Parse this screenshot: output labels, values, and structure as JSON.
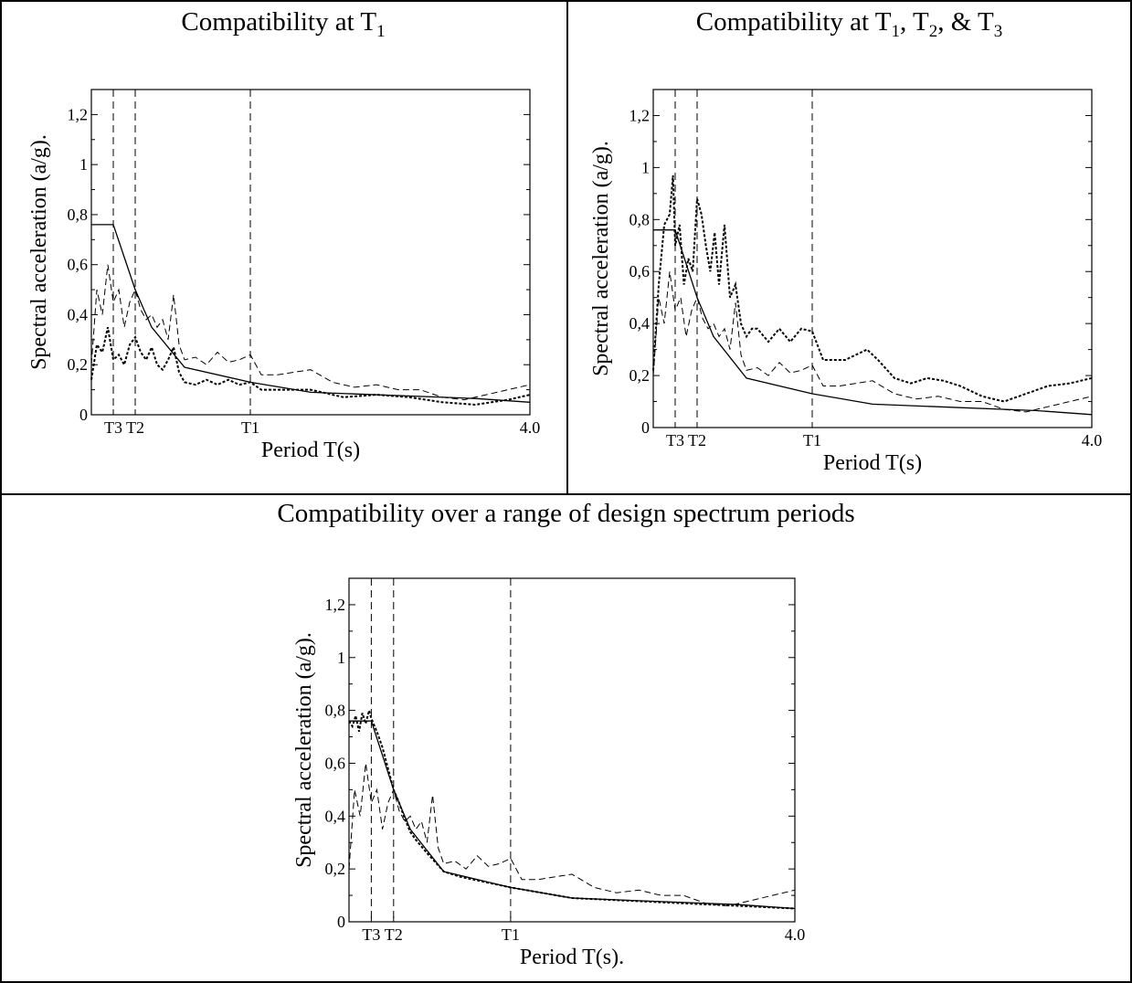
{
  "panels": [
    {
      "title_main": "Compatibility at T",
      "title_sub1": "1",
      "title_rest": "",
      "title_sub2": "",
      "title_rest2": "",
      "title_sub3": ""
    },
    {
      "title_main": "Compatibility at T",
      "title_sub1": "1",
      "title_rest": ", T",
      "title_sub2": "2",
      "title_rest2": ", & T",
      "title_sub3": "3"
    },
    {
      "title_main": "Compatibility over a range of design spectrum periods",
      "title_sub1": "",
      "title_rest": "",
      "title_sub2": "",
      "title_rest2": "",
      "title_sub3": ""
    }
  ],
  "chart_data": [
    {
      "type": "line",
      "ylabel": "Spectral acceleration (a/g).",
      "xlabel": "Period T(s)",
      "ylim": [
        0,
        1.3
      ],
      "xlim": [
        0,
        4.0
      ],
      "y_ticks": [
        "0",
        "0,2",
        "0,4",
        "0,6",
        "0,8",
        "1",
        "1,2"
      ],
      "x_tick_labels": [
        {
          "label": "T3",
          "x": 0.2
        },
        {
          "label": "T2",
          "x": 0.4
        },
        {
          "label": "T1",
          "x": 1.45
        },
        {
          "label": "4.0",
          "x": 4.0
        }
      ],
      "vlines": [
        0.2,
        0.4,
        1.45
      ],
      "grid": false,
      "series": [
        {
          "style": "solid",
          "x": [
            0,
            0.2,
            0.4,
            0.55,
            0.85,
            1.45,
            2.0,
            3.5,
            4.0
          ],
          "y": [
            0.76,
            0.76,
            0.5,
            0.35,
            0.19,
            0.13,
            0.09,
            0.065,
            0.05
          ]
        },
        {
          "style": "dashed",
          "x": [
            0,
            0.05,
            0.1,
            0.15,
            0.2,
            0.25,
            0.3,
            0.35,
            0.4,
            0.45,
            0.5,
            0.55,
            0.6,
            0.65,
            0.7,
            0.75,
            0.8,
            0.85,
            0.95,
            1.05,
            1.15,
            1.25,
            1.35,
            1.45,
            1.55,
            1.7,
            1.85,
            2.0,
            2.2,
            2.4,
            2.6,
            2.8,
            3.0,
            3.2,
            3.4,
            3.6,
            3.8,
            4.0
          ],
          "y": [
            0.2,
            0.5,
            0.4,
            0.6,
            0.45,
            0.5,
            0.35,
            0.45,
            0.5,
            0.42,
            0.38,
            0.4,
            0.35,
            0.38,
            0.3,
            0.48,
            0.28,
            0.22,
            0.23,
            0.2,
            0.25,
            0.21,
            0.22,
            0.24,
            0.16,
            0.16,
            0.17,
            0.18,
            0.13,
            0.11,
            0.12,
            0.1,
            0.1,
            0.07,
            0.06,
            0.08,
            0.1,
            0.12
          ]
        },
        {
          "style": "dotted",
          "x": [
            0,
            0.05,
            0.1,
            0.15,
            0.2,
            0.25,
            0.3,
            0.35,
            0.4,
            0.45,
            0.5,
            0.55,
            0.6,
            0.65,
            0.7,
            0.75,
            0.8,
            0.85,
            0.95,
            1.05,
            1.15,
            1.25,
            1.35,
            1.45,
            1.55,
            1.7,
            1.85,
            2.0,
            2.3,
            2.6,
            2.9,
            3.2,
            3.5,
            3.8,
            4.0
          ],
          "y": [
            0.14,
            0.28,
            0.25,
            0.35,
            0.22,
            0.24,
            0.2,
            0.28,
            0.31,
            0.25,
            0.22,
            0.27,
            0.2,
            0.18,
            0.22,
            0.27,
            0.17,
            0.13,
            0.12,
            0.14,
            0.12,
            0.14,
            0.12,
            0.13,
            0.1,
            0.1,
            0.1,
            0.1,
            0.07,
            0.08,
            0.07,
            0.05,
            0.04,
            0.06,
            0.08
          ]
        }
      ]
    },
    {
      "type": "line",
      "ylabel": "Spectral acceleration (a/g).",
      "xlabel": "Period T(s)",
      "ylim": [
        0,
        1.3
      ],
      "xlim": [
        0,
        4.0
      ],
      "y_ticks": [
        "0",
        "0,2",
        "0,4",
        "0,6",
        "0,8",
        "1",
        "1,2"
      ],
      "x_tick_labels": [
        {
          "label": "T3",
          "x": 0.2
        },
        {
          "label": "T2",
          "x": 0.4
        },
        {
          "label": "T1",
          "x": 1.45
        },
        {
          "label": "4.0",
          "x": 4.0
        }
      ],
      "vlines": [
        0.2,
        0.4,
        1.45
      ],
      "grid": false,
      "series": [
        {
          "style": "solid",
          "x": [
            0,
            0.2,
            0.4,
            0.55,
            0.85,
            1.45,
            2.0,
            3.5,
            4.0
          ],
          "y": [
            0.76,
            0.76,
            0.5,
            0.35,
            0.19,
            0.13,
            0.09,
            0.065,
            0.05
          ]
        },
        {
          "style": "dashed",
          "x": [
            0,
            0.05,
            0.1,
            0.15,
            0.2,
            0.25,
            0.3,
            0.35,
            0.4,
            0.45,
            0.5,
            0.55,
            0.6,
            0.65,
            0.7,
            0.75,
            0.8,
            0.85,
            0.95,
            1.05,
            1.15,
            1.25,
            1.35,
            1.45,
            1.55,
            1.7,
            1.85,
            2.0,
            2.2,
            2.4,
            2.6,
            2.8,
            3.0,
            3.2,
            3.4,
            3.6,
            3.8,
            4.0
          ],
          "y": [
            0.2,
            0.5,
            0.4,
            0.6,
            0.45,
            0.5,
            0.35,
            0.45,
            0.5,
            0.42,
            0.38,
            0.4,
            0.35,
            0.38,
            0.3,
            0.48,
            0.28,
            0.22,
            0.23,
            0.2,
            0.25,
            0.21,
            0.22,
            0.24,
            0.16,
            0.16,
            0.17,
            0.18,
            0.13,
            0.11,
            0.12,
            0.1,
            0.1,
            0.07,
            0.06,
            0.08,
            0.1,
            0.12
          ]
        },
        {
          "style": "dotted",
          "x": [
            0,
            0.05,
            0.1,
            0.15,
            0.18,
            0.2,
            0.24,
            0.28,
            0.32,
            0.36,
            0.4,
            0.44,
            0.48,
            0.52,
            0.56,
            0.6,
            0.65,
            0.7,
            0.75,
            0.8,
            0.85,
            0.9,
            0.95,
            1.05,
            1.15,
            1.25,
            1.35,
            1.45,
            1.55,
            1.65,
            1.75,
            1.85,
            1.95,
            2.05,
            2.2,
            2.35,
            2.5,
            2.65,
            2.8,
            3.0,
            3.2,
            3.4,
            3.6,
            3.8,
            4.0
          ],
          "y": [
            0.22,
            0.55,
            0.78,
            0.82,
            0.97,
            0.7,
            0.78,
            0.55,
            0.65,
            0.6,
            0.88,
            0.82,
            0.7,
            0.6,
            0.75,
            0.55,
            0.78,
            0.5,
            0.55,
            0.4,
            0.35,
            0.38,
            0.38,
            0.33,
            0.38,
            0.33,
            0.38,
            0.37,
            0.26,
            0.26,
            0.26,
            0.28,
            0.3,
            0.26,
            0.19,
            0.17,
            0.19,
            0.18,
            0.16,
            0.12,
            0.1,
            0.13,
            0.16,
            0.17,
            0.19
          ]
        }
      ]
    },
    {
      "type": "line",
      "ylabel": "Spectral acceleration (a/g).",
      "xlabel": "Period T(s).",
      "ylim": [
        0,
        1.3
      ],
      "xlim": [
        0,
        4.0
      ],
      "y_ticks": [
        "0",
        "0,2",
        "0,4",
        "0,6",
        "0,8",
        "1",
        "1,2"
      ],
      "x_tick_labels": [
        {
          "label": "T3",
          "x": 0.2
        },
        {
          "label": "T2",
          "x": 0.4
        },
        {
          "label": "T1",
          "x": 1.45
        },
        {
          "label": "4.0",
          "x": 4.0
        }
      ],
      "vlines": [
        0.2,
        0.4,
        1.45
      ],
      "grid": false,
      "series": [
        {
          "style": "solid",
          "x": [
            0,
            0.2,
            0.4,
            0.55,
            0.85,
            1.45,
            2.0,
            3.5,
            4.0
          ],
          "y": [
            0.76,
            0.76,
            0.5,
            0.35,
            0.19,
            0.13,
            0.09,
            0.065,
            0.05
          ]
        },
        {
          "style": "dashed",
          "x": [
            0,
            0.05,
            0.1,
            0.15,
            0.2,
            0.25,
            0.3,
            0.35,
            0.4,
            0.45,
            0.5,
            0.55,
            0.6,
            0.65,
            0.7,
            0.75,
            0.8,
            0.85,
            0.95,
            1.05,
            1.15,
            1.25,
            1.35,
            1.45,
            1.55,
            1.7,
            1.85,
            2.0,
            2.2,
            2.4,
            2.6,
            2.8,
            3.0,
            3.2,
            3.4,
            3.6,
            3.8,
            4.0
          ],
          "y": [
            0.2,
            0.5,
            0.4,
            0.6,
            0.45,
            0.5,
            0.35,
            0.45,
            0.5,
            0.42,
            0.38,
            0.4,
            0.35,
            0.38,
            0.3,
            0.48,
            0.28,
            0.22,
            0.23,
            0.2,
            0.25,
            0.21,
            0.22,
            0.24,
            0.16,
            0.16,
            0.17,
            0.18,
            0.13,
            0.11,
            0.12,
            0.1,
            0.1,
            0.07,
            0.06,
            0.08,
            0.1,
            0.12
          ]
        },
        {
          "style": "dotted",
          "x": [
            0,
            0.03,
            0.06,
            0.09,
            0.12,
            0.15,
            0.18,
            0.2,
            0.25,
            0.3,
            0.35,
            0.4,
            0.45,
            0.5,
            0.55,
            0.6,
            0.7,
            0.85,
            1.0,
            1.45,
            2.0,
            2.5,
            3.0,
            3.5,
            4.0
          ],
          "y": [
            0.76,
            0.74,
            0.78,
            0.72,
            0.79,
            0.75,
            0.8,
            0.77,
            0.72,
            0.66,
            0.58,
            0.5,
            0.45,
            0.39,
            0.34,
            0.31,
            0.26,
            0.19,
            0.17,
            0.13,
            0.09,
            0.08,
            0.07,
            0.06,
            0.05
          ]
        }
      ]
    }
  ]
}
